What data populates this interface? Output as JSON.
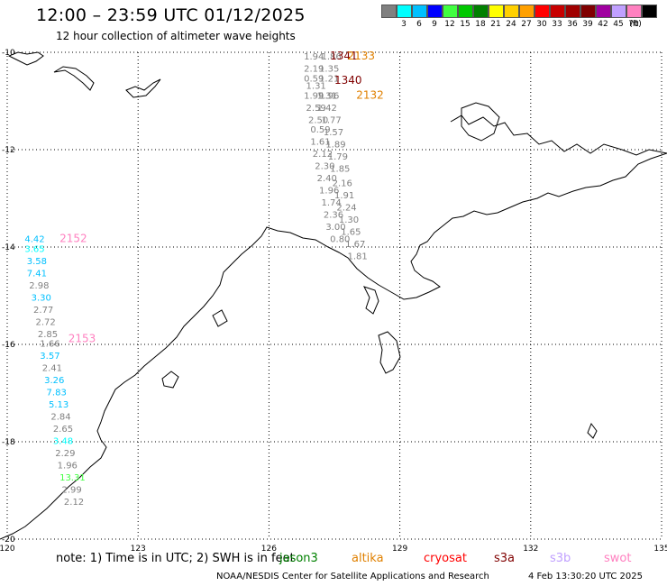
{
  "title": "12:00 – 23:59 UTC 01/12/2025",
  "subtitle": "12 hour collection of altimeter wave heights",
  "legend": {
    "unit": "(ft)",
    "bins": [
      {
        "label": "",
        "color": "#808080"
      },
      {
        "label": "3",
        "color": "#00ffff"
      },
      {
        "label": "6",
        "color": "#00c0ff"
      },
      {
        "label": "9",
        "color": "#0000ff"
      },
      {
        "label": "12",
        "color": "#40ff40"
      },
      {
        "label": "15",
        "color": "#00c800"
      },
      {
        "label": "18",
        "color": "#008000"
      },
      {
        "label": "21",
        "color": "#ffff00"
      },
      {
        "label": "24",
        "color": "#ffd000"
      },
      {
        "label": "27",
        "color": "#ffa000"
      },
      {
        "label": "30",
        "color": "#ff0000"
      },
      {
        "label": "33",
        "color": "#c80000"
      },
      {
        "label": "36",
        "color": "#a00000"
      },
      {
        "label": "39",
        "color": "#800000"
      },
      {
        "label": "42",
        "color": "#a000a0"
      },
      {
        "label": "45",
        "color": "#c0a0ff"
      },
      {
        "label": "70",
        "color": "#ff80c0"
      },
      {
        "label": "",
        "color": "#000000"
      }
    ]
  },
  "map": {
    "lon_range": [
      120,
      135
    ],
    "lat_range": [
      -20,
      -10
    ],
    "lon_ticks": [
      "120",
      "123",
      "126",
      "129",
      "132",
      "135"
    ],
    "lat_ticks": [
      "-10",
      "-12",
      "-14",
      "-16",
      "-18",
      "-20"
    ],
    "grid": "dotted",
    "coastline_color": "#000000"
  },
  "tracks": [
    {
      "satellite": "altika",
      "labels": [
        {
          "text": "1341",
          "color": "#800000",
          "lon": 127.4,
          "lat": -10.15
        },
        {
          "text": "2133",
          "color": "#e08000",
          "lon": 127.8,
          "lat": -10.15
        },
        {
          "text": "1340",
          "color": "#800000",
          "lon": 127.5,
          "lat": -10.65
        },
        {
          "text": "2132",
          "color": "#e08000",
          "lon": 128.0,
          "lat": -10.95
        }
      ],
      "points": [
        {
          "v": "1.94",
          "c": "#808080",
          "lon": 126.8,
          "lat": -10.15
        },
        {
          "v": "1.86",
          "c": "#808080",
          "lon": 127.2,
          "lat": -10.15
        },
        {
          "v": "2.19",
          "c": "#808080",
          "lon": 126.8,
          "lat": -10.4
        },
        {
          "v": "1.35",
          "c": "#808080",
          "lon": 127.15,
          "lat": -10.4
        },
        {
          "v": "0.59",
          "c": "#808080",
          "lon": 126.8,
          "lat": -10.6
        },
        {
          "v": "1.21",
          "c": "#808080",
          "lon": 127.15,
          "lat": -10.6
        },
        {
          "v": "1.31",
          "c": "#808080",
          "lon": 126.85,
          "lat": -10.75
        },
        {
          "v": "1.99",
          "c": "#808080",
          "lon": 126.8,
          "lat": -10.95
        },
        {
          "v": "1.31",
          "c": "#808080",
          "lon": 127.1,
          "lat": -10.95
        },
        {
          "v": "1.96",
          "c": "#808080",
          "lon": 127.15,
          "lat": -10.95
        },
        {
          "v": "2.59",
          "c": "#808080",
          "lon": 126.85,
          "lat": -11.2
        },
        {
          "v": "1.42",
          "c": "#808080",
          "lon": 127.1,
          "lat": -11.2
        },
        {
          "v": "2.50",
          "c": "#808080",
          "lon": 126.9,
          "lat": -11.45
        },
        {
          "v": "1.77",
          "c": "#808080",
          "lon": 127.2,
          "lat": -11.45
        },
        {
          "v": "0.59",
          "c": "#808080",
          "lon": 126.95,
          "lat": -11.65
        },
        {
          "v": "1.57",
          "c": "#808080",
          "lon": 127.25,
          "lat": -11.7
        },
        {
          "v": "1.61",
          "c": "#808080",
          "lon": 126.95,
          "lat": -11.9
        },
        {
          "v": "1.89",
          "c": "#808080",
          "lon": 127.3,
          "lat": -11.95
        },
        {
          "v": "2.12",
          "c": "#808080",
          "lon": 127.0,
          "lat": -12.15
        },
        {
          "v": "1.79",
          "c": "#808080",
          "lon": 127.35,
          "lat": -12.2
        },
        {
          "v": "2.30",
          "c": "#808080",
          "lon": 127.05,
          "lat": -12.4
        },
        {
          "v": "1.85",
          "c": "#808080",
          "lon": 127.4,
          "lat": -12.45
        },
        {
          "v": "2.40",
          "c": "#808080",
          "lon": 127.1,
          "lat": -12.65
        },
        {
          "v": "2.16",
          "c": "#808080",
          "lon": 127.45,
          "lat": -12.75
        },
        {
          "v": "1.96",
          "c": "#808080",
          "lon": 127.15,
          "lat": -12.9
        },
        {
          "v": "1.91",
          "c": "#808080",
          "lon": 127.5,
          "lat": -13.0
        },
        {
          "v": "1.74",
          "c": "#808080",
          "lon": 127.2,
          "lat": -13.15
        },
        {
          "v": "2.24",
          "c": "#808080",
          "lon": 127.55,
          "lat": -13.25
        },
        {
          "v": "2.36",
          "c": "#808080",
          "lon": 127.25,
          "lat": -13.4
        },
        {
          "v": "1.30",
          "c": "#808080",
          "lon": 127.6,
          "lat": -13.5
        },
        {
          "v": "3.00",
          "c": "#808080",
          "lon": 127.3,
          "lat": -13.65
        },
        {
          "v": "1.65",
          "c": "#808080",
          "lon": 127.65,
          "lat": -13.75
        },
        {
          "v": "0.80",
          "c": "#808080",
          "lon": 127.4,
          "lat": -13.9
        },
        {
          "v": "1.67",
          "c": "#808080",
          "lon": 127.75,
          "lat": -14.0
        },
        {
          "v": "1.81",
          "c": "#808080",
          "lon": 127.8,
          "lat": -14.25
        }
      ]
    },
    {
      "satellite": "swot",
      "labels": [
        {
          "text": "2152",
          "color": "#ff80c0",
          "lon": 121.2,
          "lat": -13.9
        },
        {
          "text": "2153",
          "color": "#ff80c0",
          "lon": 121.4,
          "lat": -15.95
        }
      ],
      "points": [
        {
          "v": "4.42",
          "c": "#00c0ff",
          "lon": 120.4,
          "lat": -13.9
        },
        {
          "v": "3.65",
          "c": "#00ffff",
          "lon": 120.4,
          "lat": -14.1
        },
        {
          "v": "3.58",
          "c": "#00c0ff",
          "lon": 120.45,
          "lat": -14.35
        },
        {
          "v": "7.41",
          "c": "#00c0ff",
          "lon": 120.45,
          "lat": -14.6
        },
        {
          "v": "2.98",
          "c": "#808080",
          "lon": 120.5,
          "lat": -14.85
        },
        {
          "v": "3.30",
          "c": "#00c0ff",
          "lon": 120.55,
          "lat": -15.1
        },
        {
          "v": "2.77",
          "c": "#808080",
          "lon": 120.6,
          "lat": -15.35
        },
        {
          "v": "2.72",
          "c": "#808080",
          "lon": 120.65,
          "lat": -15.6
        },
        {
          "v": "2.85",
          "c": "#808080",
          "lon": 120.7,
          "lat": -15.85
        },
        {
          "v": "1.66",
          "c": "#808080",
          "lon": 120.75,
          "lat": -16.05
        },
        {
          "v": "3.57",
          "c": "#00c0ff",
          "lon": 120.75,
          "lat": -16.3
        },
        {
          "v": "2.41",
          "c": "#808080",
          "lon": 120.8,
          "lat": -16.55
        },
        {
          "v": "3.26",
          "c": "#00c0ff",
          "lon": 120.85,
          "lat": -16.8
        },
        {
          "v": "7.83",
          "c": "#00c0ff",
          "lon": 120.9,
          "lat": -17.05
        },
        {
          "v": "5.13",
          "c": "#00c0ff",
          "lon": 120.95,
          "lat": -17.3
        },
        {
          "v": "2.84",
          "c": "#808080",
          "lon": 121.0,
          "lat": -17.55
        },
        {
          "v": "2.65",
          "c": "#808080",
          "lon": 121.05,
          "lat": -17.8
        },
        {
          "v": "3.48",
          "c": "#00ffff",
          "lon": 121.05,
          "lat": -18.05
        },
        {
          "v": "2.29",
          "c": "#808080",
          "lon": 121.1,
          "lat": -18.3
        },
        {
          "v": "1.96",
          "c": "#808080",
          "lon": 121.15,
          "lat": -18.55
        },
        {
          "v": "13.31",
          "c": "#40ff40",
          "lon": 121.2,
          "lat": -18.8
        },
        {
          "v": "2.99",
          "c": "#808080",
          "lon": 121.25,
          "lat": -19.05
        },
        {
          "v": "2.12",
          "c": "#808080",
          "lon": 121.3,
          "lat": -19.3
        }
      ]
    }
  ],
  "note": {
    "prefix": "note:  1) Time is in UTC;  2) SWH is in feet",
    "satellites": [
      {
        "name": "jason3",
        "color": "#008000"
      },
      {
        "name": "altika",
        "color": "#e08000"
      },
      {
        "name": "cryosat",
        "color": "#ff0000"
      },
      {
        "name": "s3a",
        "color": "#800000"
      },
      {
        "name": "s3b",
        "color": "#c0a0ff"
      },
      {
        "name": "swot",
        "color": "#ff80c0"
      }
    ]
  },
  "credit": "NOAA/NESDIS Center for Satellite Applications and Research",
  "timestamp": "4 Feb 13:30:20 UTC 2025"
}
